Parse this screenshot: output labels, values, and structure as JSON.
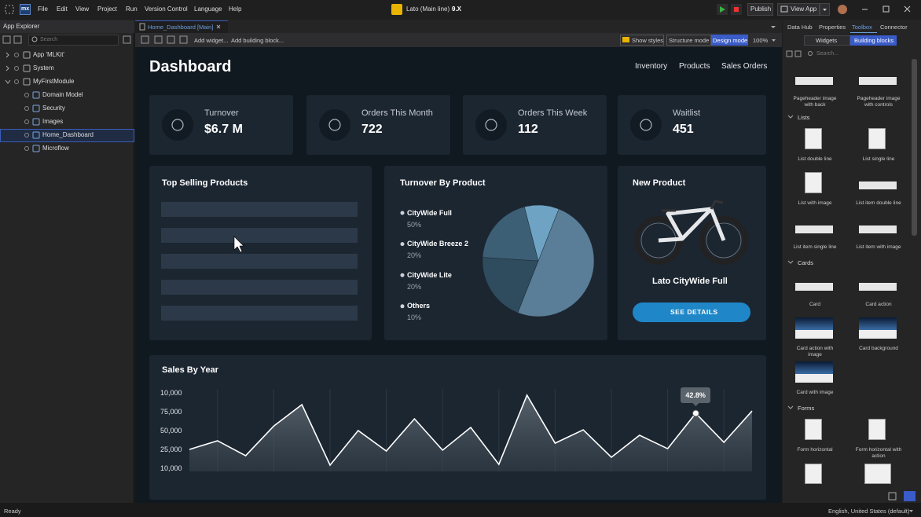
{
  "menu_bar": {
    "logo": "mx",
    "items": [
      "File",
      "Edit",
      "View",
      "Project",
      "Run",
      "Version Control",
      "Language",
      "Help"
    ],
    "app_title": "Lato (Main line) - ",
    "version": "9.X",
    "buttons": [
      "Publish",
      "View App"
    ]
  },
  "app_explorer": {
    "title": "App Explorer",
    "search_placeholder": "Search",
    "tree": [
      {
        "label": "App 'MLKit'"
      },
      {
        "label": "System"
      },
      {
        "label": "MyFirstModule",
        "children": [
          {
            "label": "Domain Model"
          },
          {
            "label": "Security"
          },
          {
            "label": "Images"
          },
          {
            "label": "Home_Dashboard"
          },
          {
            "label": "Microflow"
          }
        ]
      }
    ]
  },
  "editor": {
    "tab": "Home_Dashboard [Main]",
    "toolbar": [
      "Add widget...",
      "Add building block..."
    ],
    "show_styles": "Show styles",
    "modes": [
      "Structure mode",
      "Design mode"
    ],
    "zoom": "100%"
  },
  "dashboard": {
    "title": "Dashboard",
    "nav": [
      "Inventory",
      "Products",
      "Sales Orders"
    ],
    "kpis": [
      {
        "label": "Turnover",
        "value": "$6.7 M"
      },
      {
        "label": "Orders This Month",
        "value": 722
      },
      {
        "label": "Orders This Week",
        "value": 112
      },
      {
        "label": "Waitlist",
        "value": 451
      }
    ],
    "top_selling": {
      "title": "Top Selling Products"
    },
    "turnover_by_product": {
      "title": "Turnover By Product",
      "slices": [
        {
          "name": "CityWide Full",
          "value": 50,
          "value_label": "50%",
          "color": "#5a7e97"
        },
        {
          "name": "CityWide Breeze 2",
          "value": 20,
          "value_label": "20%",
          "color": "#2f4b5e"
        },
        {
          "name": "CityWide Lite",
          "value": 20,
          "value_label": "20%",
          "color": "#3d5f76"
        },
        {
          "name": "Others",
          "value": 10,
          "value_label": "10%",
          "color": "#6ea3c4"
        }
      ]
    },
    "new_product": {
      "title": "New Product",
      "name": "Lato CityWide Full",
      "button": "SEE DETAILS"
    },
    "sales_by_year": {
      "title": "Sales By Year",
      "y_labels": [
        "10,000",
        "75,000",
        "50,000",
        "25,000",
        "10,000"
      ],
      "ylim": [
        0,
        100000
      ],
      "values": [
        25000,
        36500,
        16700,
        56000,
        84400,
        4200,
        50000,
        22900,
        65600,
        24000,
        54200,
        5200,
        96900,
        33300,
        51000,
        14600,
        43800,
        26000,
        72900,
        34400,
        76000
      ],
      "color": "#ffffff",
      "tooltip": "42.8%"
    }
  },
  "toolbox": {
    "tabs": [
      "Data Hub",
      "Properties",
      "Toolbox",
      "Connector"
    ],
    "subtabs": [
      "Widgets",
      "Building blocks"
    ],
    "search_placeholder": "Search...",
    "top_items": [
      "Pageheader image with back",
      "Pageheader image with controls"
    ],
    "sections": [
      {
        "title": "Lists",
        "items": [
          "List double line",
          "List single line",
          "List with image",
          "List item double line",
          "List item single line",
          "List item with image"
        ]
      },
      {
        "title": "Cards",
        "items": [
          "Card",
          "Card action",
          "Card action with image",
          "Card background",
          "Card with image"
        ]
      },
      {
        "title": "Forms",
        "items": [
          "Form horizontal",
          "Form horizontal with action"
        ]
      }
    ]
  },
  "status_bar": {
    "left": "Ready",
    "right": "English, United States (default)"
  }
}
